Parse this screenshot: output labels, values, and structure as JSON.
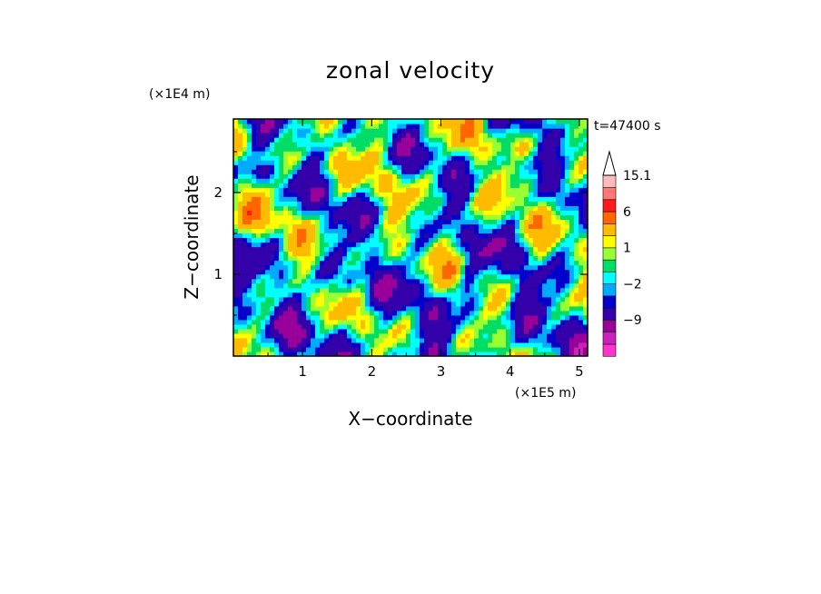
{
  "chart_data": {
    "type": "heatmap",
    "title": "zonal velocity",
    "time_label": "t=47400 s",
    "xlabel": "X−coordinate",
    "ylabel": "Z−coordinate",
    "x_unit": "(×1E5 m)",
    "y_unit": "(×1E4 m)",
    "xlim": [
      0,
      5.12
    ],
    "ylim": [
      0,
      2.9
    ],
    "x_ticks": [
      1,
      2,
      3,
      4,
      5
    ],
    "x_tick_labels": [
      "1",
      "2",
      "3",
      "4",
      "5"
    ],
    "y_ticks": [
      1,
      2
    ],
    "y_tick_labels": [
      "1",
      "2"
    ],
    "colorbar": {
      "levels": [
        -15,
        -12,
        -9,
        -6,
        -3,
        -2,
        -1,
        0,
        1,
        2,
        3,
        6,
        9,
        12,
        15.1
      ],
      "colors": [
        "#ff33cc",
        "#cc22bb",
        "#990099",
        "#3300aa",
        "#0000cc",
        "#00aaff",
        "#00ffff",
        "#00dd66",
        "#99ff33",
        "#ffff00",
        "#ffbb00",
        "#ff6600",
        "#ff1a1a",
        "#ff7777",
        "#ffbbbb"
      ],
      "labels": [
        {
          "value": 15.1,
          "text": "15.1"
        },
        {
          "value": 6,
          "text": "6"
        },
        {
          "value": 1,
          "text": "1"
        },
        {
          "value": -2,
          "text": "−2"
        },
        {
          "value": -9,
          "text": "−9"
        }
      ],
      "extend": "max"
    },
    "field_peak_min": -10,
    "field_peak_max": 9
  }
}
